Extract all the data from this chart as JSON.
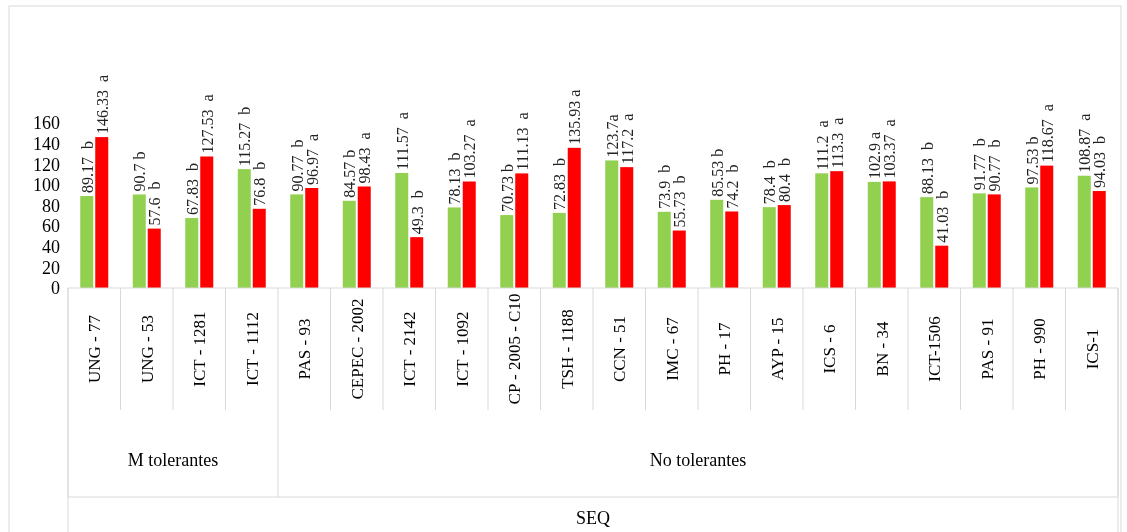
{
  "chart_data": {
    "type": "bar",
    "categories": [
      "UNG - 77",
      "UNG - 53",
      "ICT - 1281",
      "ICT - 1112",
      "PAS - 93",
      "CEPEC - 2002",
      "ICT - 2142",
      "ICT - 1092",
      "CP - 2005 - C10",
      "TSH - 1188",
      "CCN - 51",
      "IMC - 67",
      "PH - 17",
      "AYP - 15",
      "ICS - 6",
      "BN - 34",
      "ICT-1506",
      "PAS - 91",
      "PH - 990",
      "ICS-1"
    ],
    "series": [
      {
        "color": "#92d050",
        "values": [
          89.17,
          90.7,
          67.83,
          115.27,
          90.77,
          84.57,
          111.57,
          78.13,
          70.73,
          72.83,
          123.7,
          73.9,
          85.53,
          78.4,
          111.2,
          102.9,
          88.13,
          91.77,
          97.53,
          108.87
        ],
        "value_labels": [
          "89.17  b",
          "90.7 b",
          "67.83  b",
          "115.27  b",
          "90.77  b",
          "84.57 b",
          "111.57  a",
          "78.13  b",
          "70.73 b",
          "72.83  b",
          "123.7a",
          "73.9  b",
          "85.53 b",
          "78.4  b",
          "111.2  a",
          "102.9 a",
          "88.13  b",
          "91.77  b",
          "97.53 b",
          "108.87  a"
        ]
      },
      {
        "color": "#ff0000",
        "values": [
          146.33,
          57.6,
          127.53,
          76.8,
          96.97,
          98.43,
          49.3,
          103.27,
          111.13,
          135.93,
          117.2,
          55.73,
          74.2,
          80.4,
          113.3,
          103.37,
          41.03,
          90.77,
          118.67,
          94.03
        ],
        "value_labels": [
          "146.33  a",
          "57.6  b",
          "127.53  a",
          "76.8  b",
          "96.97  a",
          "98.43  a",
          "49.3  b",
          "103.27  a",
          "111.13  a",
          "135.93 a",
          "117.2  a",
          "55.73  b",
          "74.2  b",
          "80.4  b",
          "113.3  a",
          "103.37  a",
          "41.03  b",
          "90.77  b",
          "118.67  a",
          "94.03  b"
        ]
      }
    ],
    "ylim": [
      0,
      160
    ],
    "yticks": [
      0,
      20,
      40,
      60,
      80,
      100,
      120,
      140,
      160
    ],
    "annotations": [
      "M tolerantes",
      "No tolerantes",
      "SEQ"
    ],
    "grid": false
  }
}
